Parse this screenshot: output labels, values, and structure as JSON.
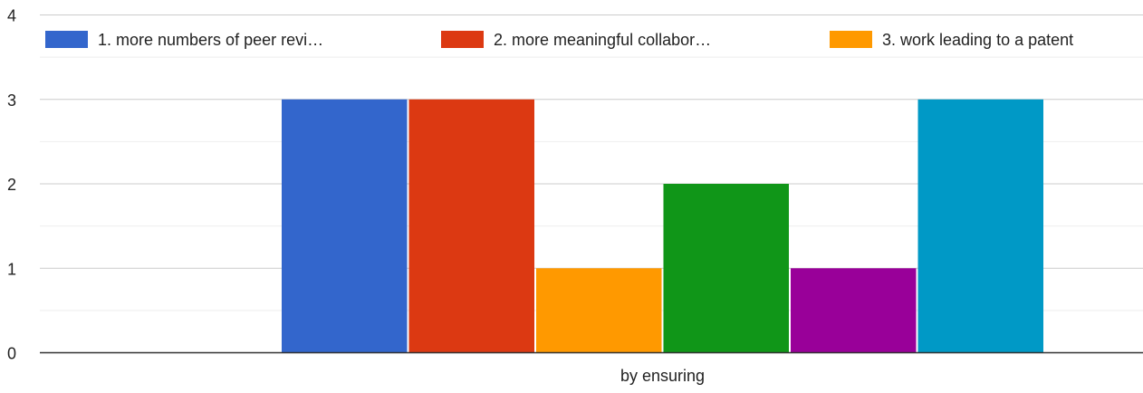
{
  "chart_data": {
    "type": "bar",
    "categories": [
      "by ensuring"
    ],
    "series": [
      {
        "name": "1. more numbers of peer revi…",
        "values": [
          3
        ],
        "color": "#3366cc"
      },
      {
        "name": "2. more meaningful collabor…",
        "values": [
          3
        ],
        "color": "#dc3912"
      },
      {
        "name": "3. work leading to a patent",
        "values": [
          1
        ],
        "color": "#ff9900"
      },
      {
        "values": [
          2
        ],
        "color": "#109618"
      },
      {
        "values": [
          1
        ],
        "color": "#990099"
      },
      {
        "values": [
          3
        ],
        "color": "#0099c6"
      }
    ],
    "ylim": [
      0,
      4
    ],
    "yticks": [
      "0",
      "1",
      "2",
      "3",
      "4"
    ],
    "grid": true,
    "minor_grid": true,
    "legend_position": "top"
  }
}
